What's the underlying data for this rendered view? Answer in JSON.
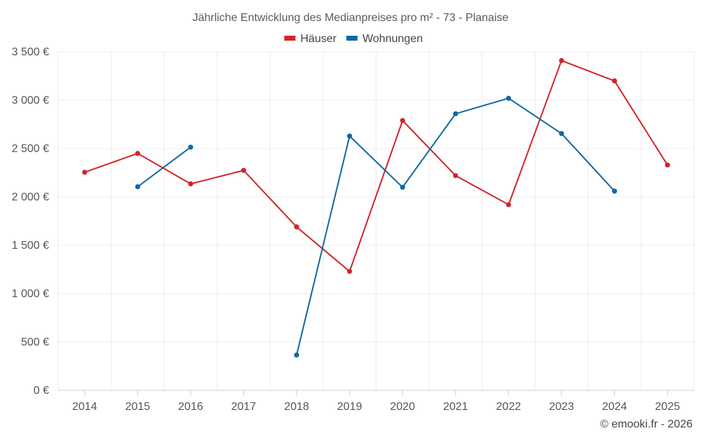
{
  "chart_data": {
    "type": "line",
    "title": "Jährliche Entwicklung des Medianpreises pro m² - 73 - Planaise",
    "categories": [
      "2014",
      "2015",
      "2016",
      "2017",
      "2018",
      "2019",
      "2020",
      "2021",
      "2022",
      "2023",
      "2024",
      "2025"
    ],
    "ylim": [
      0,
      3500
    ],
    "yticks": [
      0,
      500,
      1000,
      1500,
      2000,
      2500,
      3000,
      3500
    ],
    "ytick_labels": [
      "0 €",
      "500 €",
      "1 000 €",
      "1 500 €",
      "2 000 €",
      "2 500 €",
      "3 000 €",
      "3 500 €"
    ],
    "grid": true,
    "legend_position": "top-center",
    "series": [
      {
        "name": "Häuser",
        "color": "#d0262a",
        "values": [
          2255,
          2450,
          2135,
          2275,
          1690,
          1230,
          2790,
          2220,
          1920,
          3410,
          3200,
          2330
        ]
      },
      {
        "name": "Wohnungen",
        "color": "#0f68a1",
        "values": [
          null,
          2105,
          2515,
          null,
          365,
          2630,
          2100,
          2860,
          3020,
          2655,
          2060,
          null
        ]
      }
    ]
  },
  "credit": "© emooki.fr - 2026"
}
